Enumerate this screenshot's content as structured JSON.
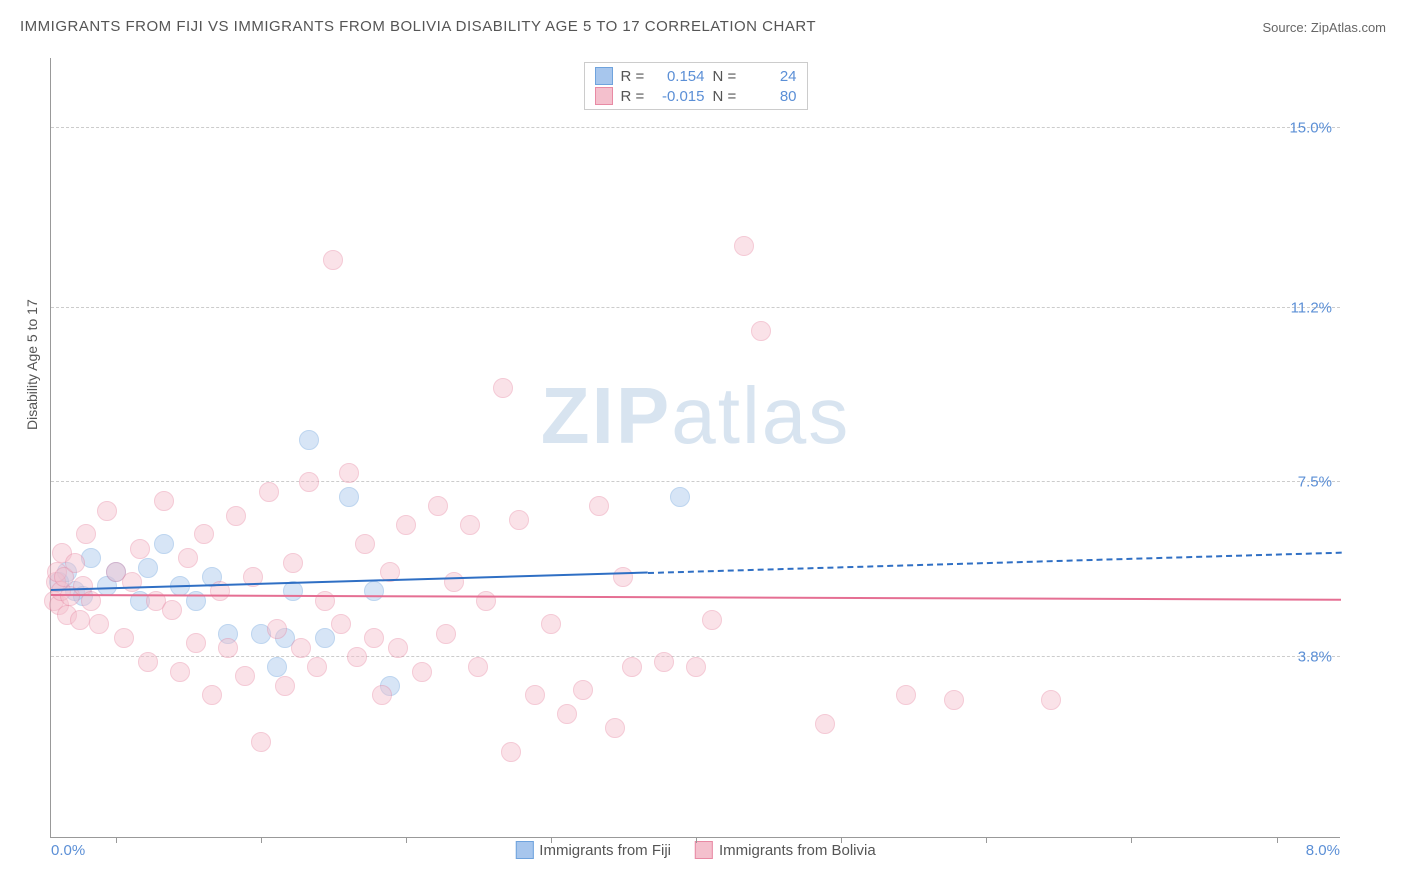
{
  "title": "IMMIGRANTS FROM FIJI VS IMMIGRANTS FROM BOLIVIA DISABILITY AGE 5 TO 17 CORRELATION CHART",
  "source": "Source: ZipAtlas.com",
  "y_label": "Disability Age 5 to 17",
  "watermark": "ZIPatlas",
  "chart": {
    "type": "scatter",
    "xlim": [
      0,
      8
    ],
    "ylim": [
      0,
      16.5
    ],
    "x_ticks": {
      "0": "0.0%",
      "8": "8.0%"
    },
    "y_ticks": [
      {
        "v": 3.8,
        "label": "3.8%"
      },
      {
        "v": 7.5,
        "label": "7.5%"
      },
      {
        "v": 11.2,
        "label": "11.2%"
      },
      {
        "v": 15.0,
        "label": "15.0%"
      }
    ],
    "x_tick_marks": [
      0.4,
      1.3,
      2.2,
      3.1,
      4.0,
      4.9,
      5.8,
      6.7,
      7.6
    ],
    "background_color": "#ffffff",
    "grid_color": "#cccccc",
    "axis_color": "#999999",
    "marker_radius": 10,
    "marker_opacity": 0.45,
    "series": [
      {
        "name": "Immigrants from Fiji",
        "color_fill": "#a7c6ed",
        "color_border": "#6fa3dd",
        "R": "0.154",
        "N": "24",
        "trend": {
          "y_at_x0": 5.2,
          "y_at_x_end": 6.0,
          "solid_until_x": 3.7,
          "color": "#2f6fc4"
        },
        "points": [
          [
            0.05,
            5.4
          ],
          [
            0.1,
            5.6
          ],
          [
            0.15,
            5.2
          ],
          [
            0.2,
            5.1
          ],
          [
            0.25,
            5.9
          ],
          [
            0.35,
            5.3
          ],
          [
            0.4,
            5.6
          ],
          [
            0.55,
            5.0
          ],
          [
            0.6,
            5.7
          ],
          [
            0.7,
            6.2
          ],
          [
            0.8,
            5.3
          ],
          [
            0.9,
            5.0
          ],
          [
            1.0,
            5.5
          ],
          [
            1.1,
            4.3
          ],
          [
            1.3,
            4.3
          ],
          [
            1.4,
            3.6
          ],
          [
            1.45,
            4.2
          ],
          [
            1.5,
            5.2
          ],
          [
            1.6,
            8.4
          ],
          [
            1.7,
            4.2
          ],
          [
            1.85,
            7.2
          ],
          [
            2.0,
            5.2
          ],
          [
            2.1,
            3.2
          ],
          [
            3.9,
            7.2
          ]
        ]
      },
      {
        "name": "Immigrants from Bolivia",
        "color_fill": "#f4c0cd",
        "color_border": "#e88aa4",
        "R": "-0.015",
        "N": "80",
        "trend": {
          "y_at_x0": 5.1,
          "y_at_x_end": 5.0,
          "solid_until_x": 8.0,
          "color": "#e56f93"
        },
        "points": [
          [
            0.02,
            5.0
          ],
          [
            0.03,
            5.4
          ],
          [
            0.04,
            5.6
          ],
          [
            0.05,
            4.9
          ],
          [
            0.06,
            5.2
          ],
          [
            0.07,
            6.0
          ],
          [
            0.08,
            5.5
          ],
          [
            0.1,
            4.7
          ],
          [
            0.12,
            5.1
          ],
          [
            0.15,
            5.8
          ],
          [
            0.18,
            4.6
          ],
          [
            0.2,
            5.3
          ],
          [
            0.22,
            6.4
          ],
          [
            0.25,
            5.0
          ],
          [
            0.3,
            4.5
          ],
          [
            0.35,
            6.9
          ],
          [
            0.4,
            5.6
          ],
          [
            0.45,
            4.2
          ],
          [
            0.5,
            5.4
          ],
          [
            0.55,
            6.1
          ],
          [
            0.6,
            3.7
          ],
          [
            0.65,
            5.0
          ],
          [
            0.7,
            7.1
          ],
          [
            0.75,
            4.8
          ],
          [
            0.8,
            3.5
          ],
          [
            0.85,
            5.9
          ],
          [
            0.9,
            4.1
          ],
          [
            0.95,
            6.4
          ],
          [
            1.0,
            3.0
          ],
          [
            1.05,
            5.2
          ],
          [
            1.1,
            4.0
          ],
          [
            1.15,
            6.8
          ],
          [
            1.2,
            3.4
          ],
          [
            1.25,
            5.5
          ],
          [
            1.3,
            2.0
          ],
          [
            1.35,
            7.3
          ],
          [
            1.4,
            4.4
          ],
          [
            1.45,
            3.2
          ],
          [
            1.5,
            5.8
          ],
          [
            1.55,
            4.0
          ],
          [
            1.6,
            7.5
          ],
          [
            1.65,
            3.6
          ],
          [
            1.7,
            5.0
          ],
          [
            1.75,
            12.2
          ],
          [
            1.8,
            4.5
          ],
          [
            1.85,
            7.7
          ],
          [
            1.9,
            3.8
          ],
          [
            1.95,
            6.2
          ],
          [
            2.0,
            4.2
          ],
          [
            2.05,
            3.0
          ],
          [
            2.1,
            5.6
          ],
          [
            2.15,
            4.0
          ],
          [
            2.2,
            6.6
          ],
          [
            2.3,
            3.5
          ],
          [
            2.4,
            7.0
          ],
          [
            2.45,
            4.3
          ],
          [
            2.5,
            5.4
          ],
          [
            2.6,
            6.6
          ],
          [
            2.65,
            3.6
          ],
          [
            2.7,
            5.0
          ],
          [
            2.8,
            9.5
          ],
          [
            2.85,
            1.8
          ],
          [
            2.9,
            6.7
          ],
          [
            3.0,
            3.0
          ],
          [
            3.1,
            4.5
          ],
          [
            3.2,
            2.6
          ],
          [
            3.3,
            3.1
          ],
          [
            3.4,
            7.0
          ],
          [
            3.5,
            2.3
          ],
          [
            3.55,
            5.5
          ],
          [
            3.6,
            3.6
          ],
          [
            3.8,
            3.7
          ],
          [
            4.0,
            3.6
          ],
          [
            4.1,
            4.6
          ],
          [
            4.3,
            12.5
          ],
          [
            4.4,
            10.7
          ],
          [
            4.8,
            2.4
          ],
          [
            5.3,
            3.0
          ],
          [
            5.6,
            2.9
          ],
          [
            6.2,
            2.9
          ]
        ]
      }
    ]
  },
  "legend_top": [
    {
      "swatch_fill": "#a7c6ed",
      "swatch_border": "#6fa3dd",
      "r_label": "R =",
      "r_val": "0.154",
      "n_label": "N =",
      "n_val": "24"
    },
    {
      "swatch_fill": "#f4c0cd",
      "swatch_border": "#e88aa4",
      "r_label": "R =",
      "r_val": "-0.015",
      "n_label": "N =",
      "n_val": "80"
    }
  ],
  "legend_bottom": [
    {
      "swatch_fill": "#a7c6ed",
      "swatch_border": "#6fa3dd",
      "label": "Immigrants from Fiji"
    },
    {
      "swatch_fill": "#f4c0cd",
      "swatch_border": "#e88aa4",
      "label": "Immigrants from Bolivia"
    }
  ]
}
